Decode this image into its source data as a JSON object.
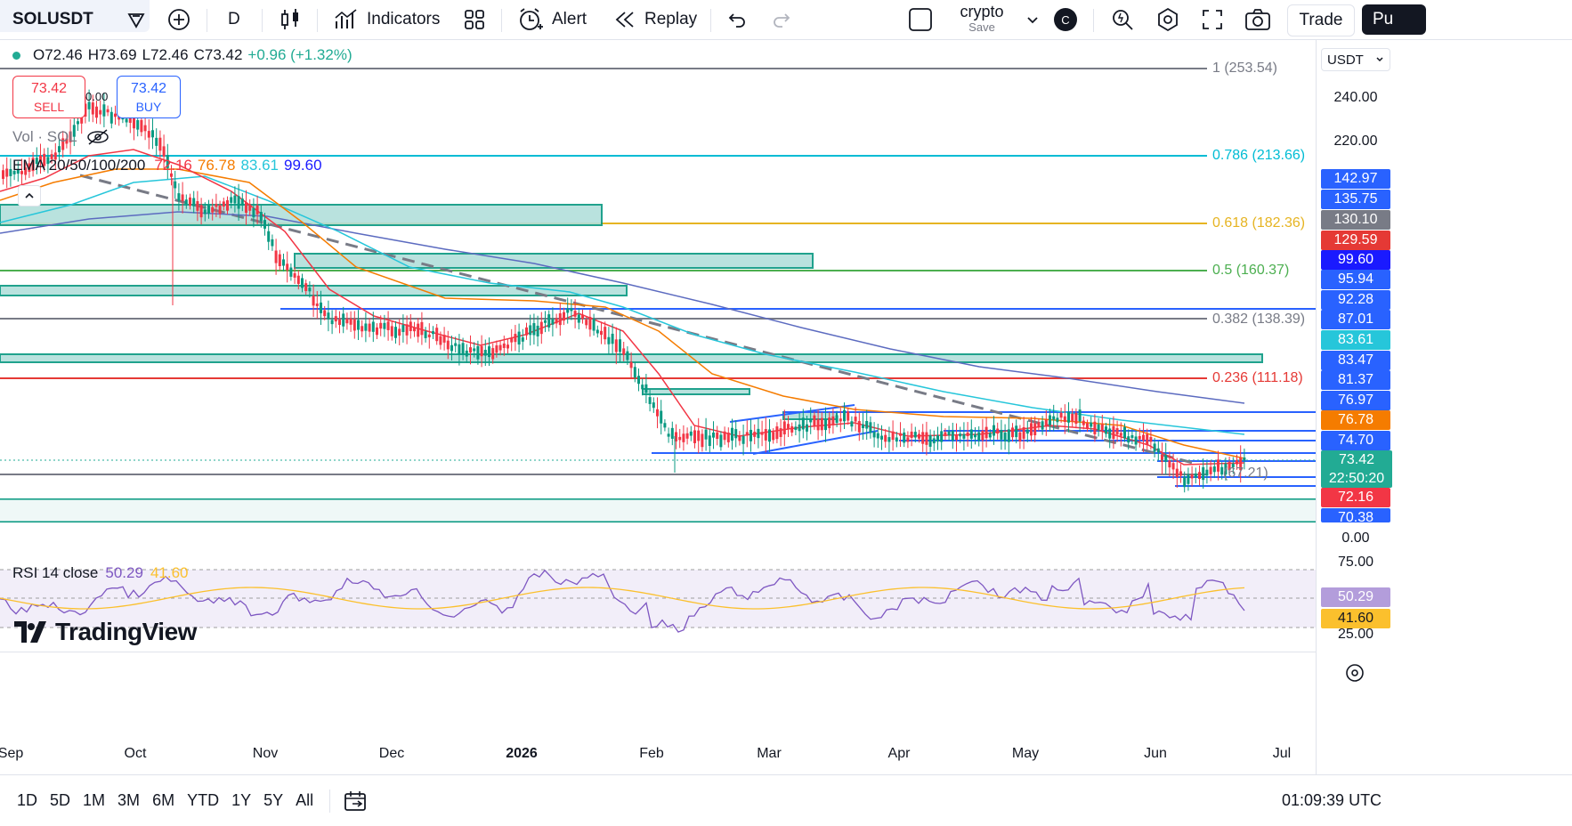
{
  "toolbar": {
    "symbol": "SOLUSDT",
    "interval": "D",
    "indicators": "Indicators",
    "alert": "Alert",
    "replay": "Replay",
    "layout_name": "crypto",
    "layout_save": "Save",
    "avatar_letter": "C",
    "trade": "Trade",
    "publish": "Pu"
  },
  "ohlc": {
    "o": "O72.46",
    "h": "H73.69",
    "l": "L72.46",
    "c": "C73.42",
    "chg": "+0.96 (+1.32%)"
  },
  "sell": {
    "price": "73.42",
    "label": "SELL"
  },
  "spread": "0.00",
  "buy": {
    "price": "73.42",
    "label": "BUY"
  },
  "vol_label": "Vol · SOL",
  "ema": {
    "label": "EMA 20/50/100/200",
    "v20": "72.16",
    "v50": "76.78",
    "v100": "83.61",
    "v200": "99.60"
  },
  "rsi": {
    "label": "RSI 14 close",
    "v1": "50.29",
    "v2": "41.60"
  },
  "currency": "USDT",
  "fib": [
    {
      "label": "1 (253.54)",
      "color": "#787b86"
    },
    {
      "label": "0.786 (213.66)",
      "color": "#00bcd4"
    },
    {
      "label": "0.618 (182.36)",
      "color": "#e6b422"
    },
    {
      "label": "0.5 (160.37)",
      "color": "#4caf50"
    },
    {
      "label": "0.382 (138.39)",
      "color": "#787b86"
    },
    {
      "label": "0.236 (111.18)",
      "color": "#e53935"
    }
  ],
  "price_scale": [
    "240.00",
    "220.00",
    "0.00",
    "75.00",
    "25.00"
  ],
  "axis_labels": [
    {
      "v": "142.97",
      "bg": "#2962ff"
    },
    {
      "v": "135.75",
      "bg": "#2962ff"
    },
    {
      "v": "130.10",
      "bg": "#787b86"
    },
    {
      "v": "129.59",
      "bg": "#e53935"
    },
    {
      "v": "99.60",
      "bg": "#1a1aff"
    },
    {
      "v": "95.94",
      "bg": "#2962ff"
    },
    {
      "v": "92.28",
      "bg": "#2962ff"
    },
    {
      "v": "87.01",
      "bg": "#2962ff"
    },
    {
      "v": "83.61",
      "bg": "#26c6da"
    },
    {
      "v": "83.47",
      "bg": "#2962ff"
    },
    {
      "v": "81.37",
      "bg": "#2962ff"
    },
    {
      "v": "76.97",
      "bg": "#2962ff"
    },
    {
      "v": "76.78",
      "bg": "#f57c00"
    },
    {
      "v": "74.70",
      "bg": "#2962ff"
    },
    {
      "v": "73.42",
      "bg": "#22ab94"
    },
    {
      "v": "22:50:20",
      "bg": "#22ab94"
    },
    {
      "v": "72.16",
      "bg": "#f23645"
    },
    {
      "v": "70.38",
      "bg": "#2962ff"
    },
    {
      "v": "50.29",
      "bg": "#b39ddb"
    },
    {
      "v": "41.60",
      "bg": "#fbc02d"
    }
  ],
  "time_axis": [
    "Sep",
    "Oct",
    "Nov",
    "Dec",
    "2026",
    "Feb",
    "Mar",
    "Apr",
    "May",
    "Jun",
    "Jul"
  ],
  "ranges": [
    "1D",
    "5D",
    "1M",
    "3M",
    "6M",
    "YTD",
    "1Y",
    "5Y",
    "All"
  ],
  "clock": "01:09:39 UTC",
  "watermark": "TradingView",
  "chart_annotation": "(67.21)"
}
